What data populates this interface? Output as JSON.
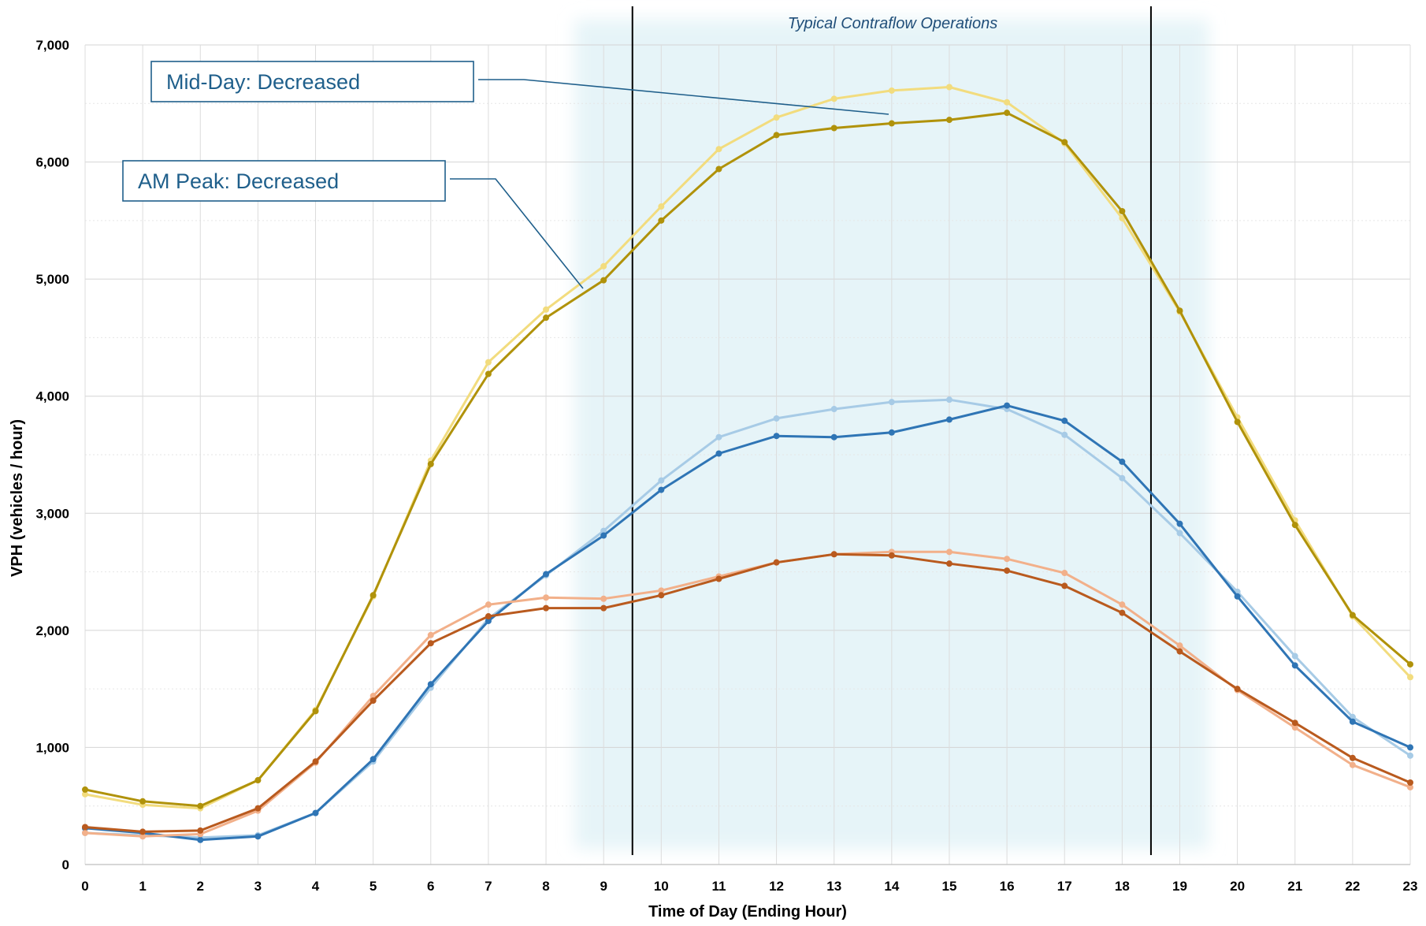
{
  "chart_data": {
    "type": "line",
    "xlabel": "Time of Day (Ending Hour)",
    "ylabel": "VPH (vehicles / hour)",
    "x": [
      0,
      1,
      2,
      3,
      4,
      5,
      6,
      7,
      8,
      9,
      10,
      11,
      12,
      13,
      14,
      15,
      16,
      17,
      18,
      19,
      20,
      21,
      22,
      23
    ],
    "xlim": [
      0,
      23
    ],
    "ylim": [
      0,
      7000
    ],
    "yticks": [
      0,
      1000,
      2000,
      3000,
      4000,
      5000,
      6000,
      7000
    ],
    "ytick_labels": [
      "0",
      "1,000",
      "2,000",
      "3,000",
      "4,000",
      "5,000",
      "6,000",
      "7,000"
    ],
    "grid": true,
    "minor_gridlines": true,
    "legend": "none",
    "shaded_band": {
      "x_start": 8.5,
      "x_end": 19.5,
      "color": "#e6f4f8"
    },
    "vertical_lines": [
      9.5,
      18.5
    ],
    "band_label": "Typical Contraflow Operations",
    "band_label_color": "#1f4e79",
    "annotations": [
      {
        "text": "Mid-Day: Decreased",
        "x": 14,
        "y": 6400
      },
      {
        "text": "AM Peak: Decreased",
        "x": 8.6,
        "y": 4950
      }
    ],
    "annotation_color": "#1f5f8b",
    "series": [
      {
        "color": "#f2dc7e",
        "values": [
          600,
          510,
          480,
          720,
          1320,
          2290,
          3450,
          4290,
          4740,
          5110,
          5620,
          6110,
          6380,
          6540,
          6610,
          6640,
          6510,
          6160,
          5520,
          4720,
          3820,
          2940,
          2120,
          1600
        ]
      },
      {
        "color": "#b0920a",
        "values": [
          640,
          540,
          500,
          720,
          1310,
          2300,
          3420,
          4190,
          4670,
          4990,
          5500,
          5940,
          6230,
          6290,
          6330,
          6360,
          6420,
          6170,
          5580,
          4730,
          3780,
          2900,
          2130,
          1710
        ]
      },
      {
        "color": "#a7cbe6",
        "values": [
          270,
          250,
          230,
          250,
          440,
          880,
          1510,
          2100,
          2470,
          2850,
          3280,
          3650,
          3810,
          3890,
          3950,
          3970,
          3890,
          3670,
          3300,
          2830,
          2330,
          1780,
          1260,
          930
        ]
      },
      {
        "color": "#2f75b5",
        "values": [
          310,
          270,
          210,
          240,
          440,
          900,
          1540,
          2080,
          2480,
          2810,
          3200,
          3510,
          3660,
          3650,
          3690,
          3800,
          3920,
          3790,
          3440,
          2910,
          2290,
          1700,
          1220,
          1000
        ]
      },
      {
        "color": "#f2b08a",
        "values": [
          270,
          240,
          260,
          460,
          870,
          1440,
          1960,
          2220,
          2280,
          2270,
          2340,
          2460,
          2580,
          2650,
          2670,
          2670,
          2610,
          2490,
          2220,
          1870,
          1490,
          1170,
          850,
          660
        ]
      },
      {
        "color": "#b95a1e",
        "values": [
          320,
          280,
          290,
          480,
          880,
          1400,
          1890,
          2120,
          2190,
          2190,
          2300,
          2440,
          2580,
          2650,
          2640,
          2570,
          2510,
          2380,
          2150,
          1820,
          1500,
          1210,
          910,
          700
        ]
      }
    ]
  }
}
